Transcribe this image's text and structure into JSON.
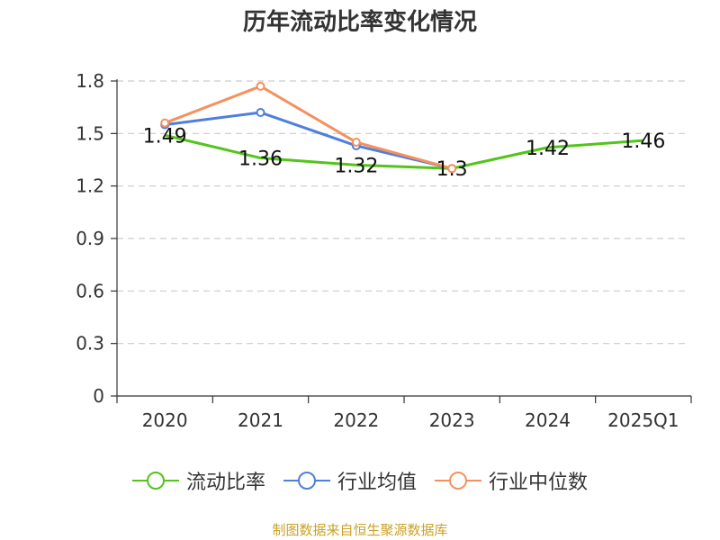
{
  "chart_data": {
    "type": "line",
    "title": "历年流动比率变化情况",
    "categories": [
      "2020",
      "2021",
      "2022",
      "2023",
      "2024",
      "2025Q1"
    ],
    "yticks": [
      "0",
      "0.3",
      "0.6",
      "0.9",
      "1.2",
      "1.5",
      "1.8"
    ],
    "ylim": [
      0,
      1.8
    ],
    "grid": true,
    "legend_position": "bottom",
    "series": [
      {
        "name": "流动比率",
        "color": "#52c41a",
        "values": [
          1.49,
          1.36,
          1.32,
          1.3,
          1.42,
          1.46
        ],
        "labels": [
          "1.49",
          "1.36",
          "1.32",
          "1.3",
          "1.42",
          "1.46"
        ]
      },
      {
        "name": "行业均值",
        "color": "#4f7fdc",
        "values": [
          1.55,
          1.62,
          1.43,
          1.3,
          null,
          null
        ]
      },
      {
        "name": "行业中位数",
        "color": "#f5915e",
        "values": [
          1.56,
          1.77,
          1.45,
          1.3,
          null,
          null
        ]
      }
    ]
  },
  "source": "制图数据来自恒生聚源数据库"
}
